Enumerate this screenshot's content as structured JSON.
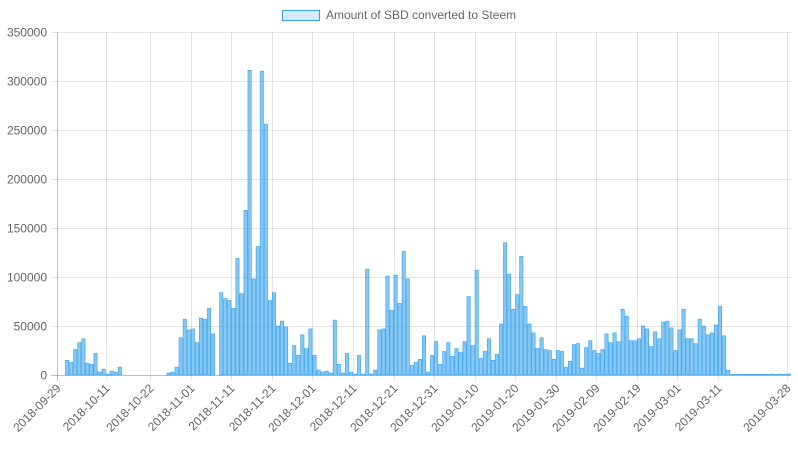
{
  "chart_data": {
    "type": "bar",
    "x_type": "date",
    "x_start": "2018-09-29",
    "x_end": "2019-03-29",
    "series": [
      {
        "name": "Amount of SBD converted to Steem",
        "color": "#36a2eb",
        "fill": "rgba(54,162,235,0.6)",
        "points": [
          [
            "2018-10-01",
            15000
          ],
          [
            "2018-10-02",
            13000
          ],
          [
            "2018-10-03",
            26000
          ],
          [
            "2018-10-04",
            33000
          ],
          [
            "2018-10-05",
            37000
          ],
          [
            "2018-10-06",
            12000
          ],
          [
            "2018-10-07",
            11000
          ],
          [
            "2018-10-08",
            22000
          ],
          [
            "2018-10-09",
            3000
          ],
          [
            "2018-10-10",
            6000
          ],
          [
            "2018-10-11",
            1000
          ],
          [
            "2018-10-12",
            4000
          ],
          [
            "2018-10-13",
            3000
          ],
          [
            "2018-10-14",
            8000
          ],
          [
            "2018-10-26",
            2000
          ],
          [
            "2018-10-27",
            3000
          ],
          [
            "2018-10-28",
            8000
          ],
          [
            "2018-10-29",
            38000
          ],
          [
            "2018-10-30",
            57000
          ],
          [
            "2018-10-31",
            46000
          ],
          [
            "2018-11-01",
            47000
          ],
          [
            "2018-11-02",
            33000
          ],
          [
            "2018-11-03",
            58000
          ],
          [
            "2018-11-04",
            57000
          ],
          [
            "2018-11-05",
            68000
          ],
          [
            "2018-11-06",
            42000
          ],
          [
            "2018-11-08",
            84000
          ],
          [
            "2018-11-09",
            78000
          ],
          [
            "2018-11-10",
            76000
          ],
          [
            "2018-11-11",
            68000
          ],
          [
            "2018-11-12",
            119000
          ],
          [
            "2018-11-13",
            83000
          ],
          [
            "2018-11-14",
            168000
          ],
          [
            "2018-11-15",
            311000
          ],
          [
            "2018-11-16",
            98000
          ],
          [
            "2018-11-17",
            131000
          ],
          [
            "2018-11-18",
            310000
          ],
          [
            "2018-11-19",
            256000
          ],
          [
            "2018-11-20",
            76000
          ],
          [
            "2018-11-21",
            84000
          ],
          [
            "2018-11-22",
            50000
          ],
          [
            "2018-11-23",
            55000
          ],
          [
            "2018-11-24",
            49000
          ],
          [
            "2018-11-25",
            12000
          ],
          [
            "2018-11-26",
            30000
          ],
          [
            "2018-11-27",
            20000
          ],
          [
            "2018-11-28",
            41000
          ],
          [
            "2018-11-29",
            27000
          ],
          [
            "2018-11-30",
            47000
          ],
          [
            "2018-12-01",
            20000
          ],
          [
            "2018-12-02",
            5000
          ],
          [
            "2018-12-03",
            3000
          ],
          [
            "2018-12-04",
            4000
          ],
          [
            "2018-12-05",
            2000
          ],
          [
            "2018-12-06",
            56000
          ],
          [
            "2018-12-07",
            11000
          ],
          [
            "2018-12-08",
            2000
          ],
          [
            "2018-12-09",
            22000
          ],
          [
            "2018-12-10",
            3000
          ],
          [
            "2018-12-11",
            1000
          ],
          [
            "2018-12-12",
            20000
          ],
          [
            "2018-12-13",
            1000
          ],
          [
            "2018-12-14",
            108000
          ],
          [
            "2018-12-15",
            1000
          ],
          [
            "2018-12-16",
            5000
          ],
          [
            "2018-12-17",
            46000
          ],
          [
            "2018-12-18",
            47000
          ],
          [
            "2018-12-19",
            101000
          ],
          [
            "2018-12-20",
            66000
          ],
          [
            "2018-12-21",
            102000
          ],
          [
            "2018-12-22",
            73000
          ],
          [
            "2018-12-23",
            126000
          ],
          [
            "2018-12-24",
            98000
          ],
          [
            "2018-12-25",
            10000
          ],
          [
            "2018-12-26",
            13000
          ],
          [
            "2018-12-27",
            16000
          ],
          [
            "2018-12-28",
            40000
          ],
          [
            "2018-12-29",
            3000
          ],
          [
            "2018-12-30",
            20000
          ],
          [
            "2018-12-31",
            34000
          ],
          [
            "2019-01-01",
            11000
          ],
          [
            "2019-01-02",
            24000
          ],
          [
            "2019-01-03",
            33000
          ],
          [
            "2019-01-04",
            19000
          ],
          [
            "2019-01-05",
            27000
          ],
          [
            "2019-01-06",
            23000
          ],
          [
            "2019-01-07",
            34000
          ],
          [
            "2019-01-08",
            80000
          ],
          [
            "2019-01-09",
            30000
          ],
          [
            "2019-01-10",
            107000
          ],
          [
            "2019-01-11",
            17000
          ],
          [
            "2019-01-12",
            24000
          ],
          [
            "2019-01-13",
            37000
          ],
          [
            "2019-01-14",
            15000
          ],
          [
            "2019-01-15",
            21000
          ],
          [
            "2019-01-16",
            52000
          ],
          [
            "2019-01-17",
            135000
          ],
          [
            "2019-01-18",
            103000
          ],
          [
            "2019-01-19",
            67000
          ],
          [
            "2019-01-20",
            82000
          ],
          [
            "2019-01-21",
            121000
          ],
          [
            "2019-01-22",
            70000
          ],
          [
            "2019-01-23",
            52000
          ],
          [
            "2019-01-24",
            43000
          ],
          [
            "2019-01-25",
            27000
          ],
          [
            "2019-01-26",
            38000
          ],
          [
            "2019-01-27",
            26000
          ],
          [
            "2019-01-28",
            25000
          ],
          [
            "2019-01-29",
            16000
          ],
          [
            "2019-01-30",
            25000
          ],
          [
            "2019-01-31",
            24000
          ],
          [
            "2019-02-01",
            8000
          ],
          [
            "2019-02-02",
            14000
          ],
          [
            "2019-02-03",
            31000
          ],
          [
            "2019-02-04",
            32000
          ],
          [
            "2019-02-05",
            7000
          ],
          [
            "2019-02-06",
            28000
          ],
          [
            "2019-02-07",
            35000
          ],
          [
            "2019-02-08",
            25000
          ],
          [
            "2019-02-09",
            22000
          ],
          [
            "2019-02-10",
            26000
          ],
          [
            "2019-02-11",
            42000
          ],
          [
            "2019-02-12",
            33000
          ],
          [
            "2019-02-13",
            43000
          ],
          [
            "2019-02-14",
            34000
          ],
          [
            "2019-02-15",
            67000
          ],
          [
            "2019-02-16",
            60000
          ],
          [
            "2019-02-17",
            35000
          ],
          [
            "2019-02-18",
            35000
          ],
          [
            "2019-02-19",
            37000
          ],
          [
            "2019-02-20",
            50000
          ],
          [
            "2019-02-21",
            47000
          ],
          [
            "2019-02-22",
            29000
          ],
          [
            "2019-02-23",
            44000
          ],
          [
            "2019-02-24",
            37000
          ],
          [
            "2019-02-25",
            54000
          ],
          [
            "2019-02-26",
            55000
          ],
          [
            "2019-02-27",
            48000
          ],
          [
            "2019-02-28",
            25000
          ],
          [
            "2019-03-01",
            46000
          ],
          [
            "2019-03-02",
            67000
          ],
          [
            "2019-03-03",
            37000
          ],
          [
            "2019-03-04",
            37000
          ],
          [
            "2019-03-05",
            32000
          ],
          [
            "2019-03-06",
            57000
          ],
          [
            "2019-03-07",
            50000
          ],
          [
            "2019-03-08",
            41000
          ],
          [
            "2019-03-09",
            43000
          ],
          [
            "2019-03-10",
            51000
          ],
          [
            "2019-03-11",
            70000
          ],
          [
            "2019-03-12",
            40000
          ],
          [
            "2019-03-13",
            5000
          ],
          [
            "2019-03-14",
            400
          ],
          [
            "2019-03-15",
            300
          ],
          [
            "2019-03-16",
            300
          ],
          [
            "2019-03-17",
            300
          ],
          [
            "2019-03-18",
            300
          ],
          [
            "2019-03-19",
            300
          ],
          [
            "2019-03-20",
            300
          ],
          [
            "2019-03-21",
            300
          ],
          [
            "2019-03-22",
            300
          ],
          [
            "2019-03-23",
            300
          ],
          [
            "2019-03-24",
            1000
          ],
          [
            "2019-03-25",
            300
          ],
          [
            "2019-03-26",
            1000
          ],
          [
            "2019-03-27",
            300
          ],
          [
            "2019-03-28",
            1000
          ]
        ]
      }
    ],
    "ylim": [
      0,
      350000
    ],
    "y_ticks": [
      0,
      50000,
      100000,
      150000,
      200000,
      250000,
      300000,
      350000
    ],
    "y_tick_labels": [
      "0",
      "50000",
      "100000",
      "150000",
      "200000",
      "250000",
      "300000",
      "350000"
    ],
    "x_ticks": [
      "2018-09-29",
      "2018-10-11",
      "2018-10-22",
      "2018-11-01",
      "2018-11-11",
      "2018-11-21",
      "2018-12-01",
      "2018-12-11",
      "2018-12-21",
      "2018-12-31",
      "2019-01-10",
      "2019-01-20",
      "2019-01-30",
      "2019-02-09",
      "2019-02-19",
      "2019-03-01",
      "2019-03-11",
      "2019-03-28"
    ],
    "title": "",
    "xlabel": "",
    "ylabel": "",
    "grid": true,
    "legend_position": "top-center"
  }
}
